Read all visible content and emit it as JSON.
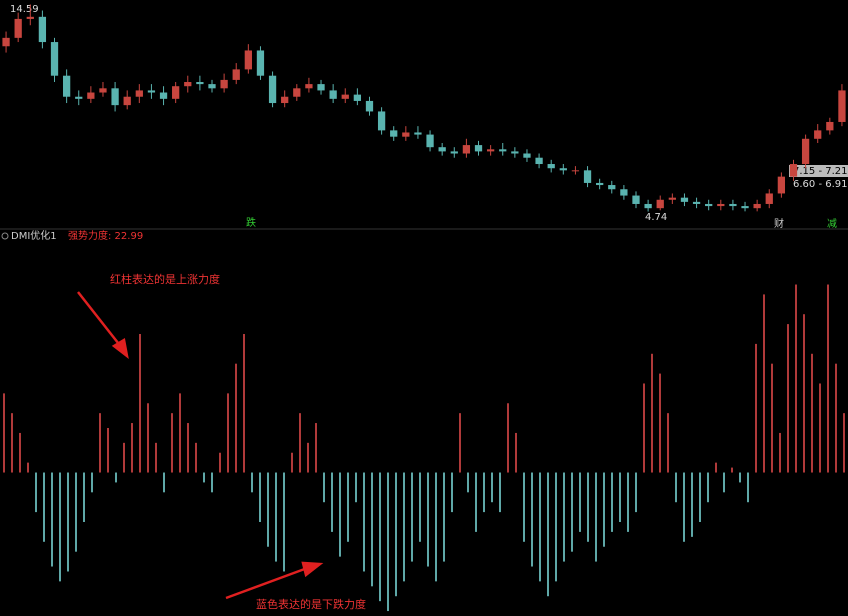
{
  "chart_data": [
    {
      "type": "candlestick",
      "high_label": "14.59",
      "low_label": "4.74",
      "price_ranges": [
        "7.15 - 7.21",
        "6.60 - 6.91"
      ],
      "signals": [
        "跌",
        "财",
        "减"
      ],
      "up_color": "#c8463f",
      "down_color": "#5ab4b0",
      "ylim": [
        4.1,
        14.8
      ],
      "open": [
        12.6,
        13.0,
        13.9,
        14.0,
        12.8,
        11.2,
        10.2,
        10.1,
        10.4,
        10.6,
        9.8,
        10.2,
        10.5,
        10.4,
        10.1,
        10.7,
        10.9,
        10.8,
        10.6,
        11.0,
        11.5,
        12.4,
        11.2,
        9.9,
        10.2,
        10.6,
        10.8,
        10.5,
        10.1,
        10.3,
        10.0,
        9.5,
        8.6,
        8.3,
        8.5,
        8.4,
        7.8,
        7.6,
        7.5,
        7.9,
        7.6,
        7.7,
        7.6,
        7.5,
        7.3,
        7.0,
        6.8,
        6.7,
        6.7,
        6.1,
        6.0,
        5.8,
        5.5,
        5.1,
        4.9,
        5.3,
        5.4,
        5.2,
        5.1,
        5.0,
        5.1,
        5.0,
        4.9,
        5.1,
        5.6,
        6.4,
        7.0,
        8.2,
        8.6,
        9.0
      ],
      "high": [
        13.3,
        14.2,
        14.59,
        14.3,
        13.0,
        11.5,
        10.5,
        10.7,
        10.9,
        10.9,
        10.5,
        10.8,
        10.8,
        10.7,
        10.9,
        11.2,
        11.2,
        11.0,
        11.3,
        11.8,
        12.7,
        12.6,
        11.4,
        10.5,
        10.8,
        11.1,
        11.0,
        10.8,
        10.6,
        10.6,
        10.2,
        9.7,
        8.8,
        8.8,
        8.8,
        8.6,
        8.0,
        7.8,
        8.2,
        8.1,
        7.9,
        8.0,
        7.8,
        7.7,
        7.5,
        7.2,
        7.0,
        6.9,
        6.9,
        6.3,
        6.2,
        6.0,
        5.7,
        5.3,
        5.5,
        5.6,
        5.6,
        5.4,
        5.3,
        5.3,
        5.3,
        5.2,
        5.3,
        5.8,
        6.6,
        7.2,
        8.4,
        8.9,
        9.2,
        10.8
      ],
      "low": [
        12.3,
        12.8,
        13.6,
        12.5,
        10.9,
        9.9,
        9.8,
        9.9,
        10.2,
        9.5,
        9.6,
        9.9,
        10.1,
        9.8,
        9.9,
        10.4,
        10.5,
        10.4,
        10.4,
        10.8,
        11.3,
        11.0,
        9.7,
        9.7,
        10.0,
        10.4,
        10.3,
        9.9,
        9.9,
        9.8,
        9.3,
        8.4,
        8.1,
        8.1,
        8.2,
        7.6,
        7.4,
        7.3,
        7.3,
        7.4,
        7.4,
        7.4,
        7.3,
        7.1,
        6.8,
        6.6,
        6.5,
        6.5,
        5.9,
        5.8,
        5.6,
        5.3,
        4.9,
        4.74,
        4.8,
        5.1,
        5.0,
        4.9,
        4.8,
        4.8,
        4.8,
        4.75,
        4.75,
        4.9,
        5.4,
        6.2,
        6.8,
        8.0,
        8.4,
        8.8
      ],
      "close": [
        13.0,
        13.9,
        14.0,
        12.8,
        11.2,
        10.2,
        10.1,
        10.4,
        10.6,
        9.8,
        10.2,
        10.5,
        10.4,
        10.1,
        10.7,
        10.9,
        10.8,
        10.6,
        11.0,
        11.5,
        12.4,
        11.2,
        9.9,
        10.2,
        10.6,
        10.8,
        10.5,
        10.1,
        10.3,
        10.0,
        9.5,
        8.6,
        8.3,
        8.5,
        8.4,
        7.8,
        7.6,
        7.5,
        7.9,
        7.6,
        7.7,
        7.6,
        7.5,
        7.3,
        7.0,
        6.8,
        6.7,
        6.7,
        6.1,
        6.0,
        5.8,
        5.5,
        5.1,
        4.9,
        5.3,
        5.4,
        5.2,
        5.1,
        5.0,
        5.1,
        5.0,
        4.9,
        5.1,
        5.6,
        6.4,
        7.0,
        8.2,
        8.6,
        9.0,
        10.5
      ]
    },
    {
      "type": "histogram_bars",
      "title": "DMI优化1",
      "subtitle": "强势力度: 22.99",
      "annotations": [
        "红柱表达的是上涨力度",
        "蓝色表达的是下跌力度"
      ],
      "up_color": "#b03a3a",
      "down_color": "#5fa8a8",
      "ylim": [
        -145,
        235
      ],
      "values": [
        80,
        60,
        40,
        10,
        -40,
        -70,
        -95,
        -110,
        -100,
        -80,
        -50,
        -20,
        60,
        45,
        -10,
        30,
        50,
        140,
        70,
        30,
        -20,
        60,
        80,
        50,
        30,
        -10,
        -20,
        20,
        80,
        110,
        140,
        -20,
        -50,
        -75,
        -90,
        -100,
        20,
        60,
        30,
        50,
        -30,
        -60,
        -85,
        -70,
        -30,
        -100,
        -115,
        -130,
        -140,
        -125,
        -110,
        -90,
        -70,
        -95,
        -110,
        -90,
        -40,
        60,
        -20,
        -60,
        -40,
        -30,
        -40,
        70,
        40,
        -70,
        -95,
        -110,
        -125,
        -110,
        -90,
        -80,
        -60,
        -70,
        -90,
        -75,
        -60,
        -50,
        -60,
        -40,
        90,
        120,
        100,
        60,
        -30,
        -70,
        -65,
        -50,
        -30,
        10,
        -20,
        5,
        -10,
        -30,
        130,
        180,
        110,
        40,
        150,
        190,
        160,
        120,
        90,
        190,
        110,
        60
      ]
    }
  ]
}
